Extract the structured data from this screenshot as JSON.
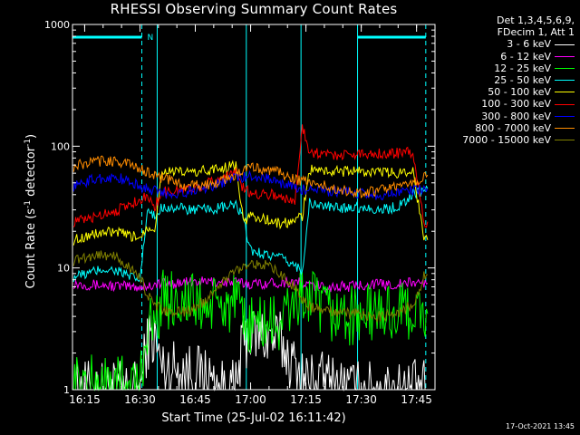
{
  "chart_data": {
    "type": "line",
    "title": "RHESSI Observing Summary Count Rates",
    "xlabel": "Start Time (25-Jul-02 16:11:42)",
    "ylabel_main": "Count Rate (s",
    "ylabel_sup1": "-1",
    "ylabel_mid": " detector",
    "ylabel_sup2": "-1",
    "ylabel_end": ")",
    "yscale": "log",
    "ylim": [
      1,
      1000
    ],
    "xlim": [
      "16:11:42",
      "17:50:00"
    ],
    "x_ticks": [
      "16:15",
      "16:30",
      "16:45",
      "17:00",
      "17:15",
      "17:30",
      "17:45"
    ],
    "y_ticks": [
      "1",
      "10",
      "100",
      "1000"
    ],
    "legend_header": [
      "Det 1,3,4,5,6,9,",
      "FDecim 1, Att 1"
    ],
    "x": [
      "16:12",
      "16:16",
      "16:20",
      "16:24",
      "16:28",
      "16:30",
      "16:32",
      "16:34",
      "16:36",
      "16:40",
      "16:44",
      "16:48",
      "16:52",
      "16:56",
      "16:58",
      "17:00",
      "17:04",
      "17:08",
      "17:12",
      "17:14",
      "17:16",
      "17:20",
      "17:24",
      "17:28",
      "17:32",
      "17:36",
      "17:40",
      "17:44",
      "17:47",
      "17:48"
    ],
    "series": [
      {
        "name": "3 - 6 keV",
        "color": "#ffffff",
        "values": [
          1,
          1,
          1,
          1,
          1,
          1,
          2.5,
          2.6,
          1.5,
          1.5,
          1.4,
          1.3,
          1,
          1,
          2.5,
          2.8,
          2.8,
          2.5,
          1.5,
          1.3,
          1.2,
          1.2,
          1.1,
          1,
          1,
          1,
          1,
          1,
          1,
          1
        ]
      },
      {
        "name": "6 - 12 keV",
        "color": "#ff00ff",
        "values": [
          7.5,
          7.3,
          7.2,
          7.1,
          7.0,
          7.0,
          7.1,
          7.3,
          7.5,
          7.5,
          7.6,
          7.7,
          7.7,
          7.6,
          7.5,
          7.4,
          7.5,
          7.6,
          7.7,
          7.4,
          7.2,
          7.0,
          7.0,
          7.1,
          7.4,
          7.3,
          7.3,
          7.6,
          7.5,
          7.5
        ]
      },
      {
        "name": "12 - 25 keV",
        "color": "#00ff00",
        "values": [
          1.1,
          1.1,
          1.1,
          1.1,
          1.1,
          1.1,
          3.4,
          3.5,
          5.5,
          5.6,
          5.2,
          4.8,
          4.8,
          5.2,
          3.4,
          3.5,
          3.5,
          3.4,
          5.4,
          5.6,
          5.8,
          4.3,
          4.1,
          4.0,
          4.2,
          4.3,
          4.3,
          4.4,
          4.2,
          4.2
        ]
      },
      {
        "name": "25 - 50 keV",
        "color": "#00ffff",
        "values": [
          8.5,
          9.0,
          9.8,
          9.5,
          8.2,
          8.0,
          29,
          26,
          32,
          31,
          30,
          30,
          31,
          33,
          25,
          14,
          13,
          12,
          10.5,
          9.5,
          34,
          32,
          31,
          32,
          31,
          30,
          32,
          40,
          44,
          45
        ]
      },
      {
        "name": "50 - 100 keV",
        "color": "#ffff00",
        "values": [
          17,
          18.5,
          19.5,
          19.5,
          18,
          18,
          22,
          21,
          64,
          61,
          61,
          63,
          66,
          70,
          24,
          27,
          25,
          23,
          24,
          27,
          64,
          63,
          62,
          63,
          61,
          61,
          60,
          65,
          17,
          17
        ]
      },
      {
        "name": "100 - 300 keV",
        "color": "#ff0000",
        "values": [
          24,
          25,
          28,
          30,
          34,
          37,
          38,
          32,
          42,
          43,
          45,
          49,
          55,
          62,
          45,
          41,
          41,
          39,
          34,
          150,
          90,
          86,
          85,
          86,
          88,
          87,
          88,
          90,
          23,
          24
        ]
      },
      {
        "name": "300 - 800 keV",
        "color": "#0000ff",
        "values": [
          47,
          52,
          55,
          55,
          50,
          46,
          45,
          43,
          41,
          41,
          43,
          46,
          50,
          56,
          55,
          57,
          55,
          50,
          46,
          44,
          44,
          43,
          42,
          41,
          40,
          40,
          41,
          44,
          45,
          45
        ]
      },
      {
        "name": "800 - 7000 keV",
        "color": "#ff8c00",
        "values": [
          68,
          73,
          76,
          75,
          70,
          64,
          62,
          58,
          55,
          50,
          47,
          48,
          52,
          58,
          64,
          66,
          65,
          60,
          54,
          52,
          50,
          47,
          44,
          42,
          42,
          44,
          46,
          50,
          56,
          58
        ]
      },
      {
        "name": "7000 - 15000 keV",
        "color": "#808000",
        "values": [
          11.5,
          12.5,
          13,
          12,
          9.5,
          8.5,
          6.0,
          5.0,
          4.5,
          4.3,
          4.5,
          5.5,
          7.5,
          9.5,
          10.5,
          11,
          10.5,
          9,
          7.0,
          5.5,
          4.8,
          4.5,
          4.2,
          4.3,
          4.0,
          4.0,
          4.3,
          5.0,
          8.5,
          8.8
        ]
      }
    ],
    "night_intervals": [
      [
        "16:11:42",
        "16:30:30"
      ],
      [
        "17:29:00",
        "17:47:30"
      ]
    ],
    "dashed_markers": [
      "16:30:30",
      "17:47:30"
    ],
    "solid_markers": [
      "16:34:40",
      "16:58:50",
      "17:13:40",
      "17:29:00"
    ],
    "marker_label": "N",
    "grid": false,
    "legend_placement": "right"
  },
  "footer": "17-Oct-2021 13:45"
}
